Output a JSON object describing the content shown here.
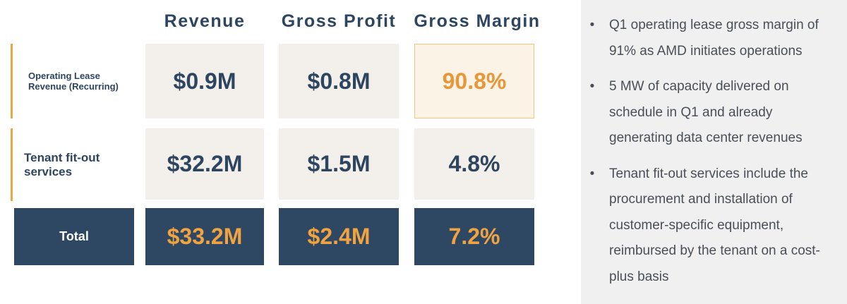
{
  "columns": {
    "revenue": "Revenue",
    "gross_profit": "Gross Profit",
    "gross_margin": "Gross Margin"
  },
  "rows": [
    {
      "label_line1": "Operating Lease",
      "label_line2": "Revenue (Recurring)",
      "revenue": "$0.9M",
      "gross_profit": "$0.8M",
      "gross_margin": "90.8%"
    },
    {
      "label_line1": "Tenant fit-out",
      "label_line2": "services",
      "revenue": "$32.2M",
      "gross_profit": "$1.5M",
      "gross_margin": "4.8%"
    }
  ],
  "total": {
    "label": "Total",
    "revenue": "$33.2M",
    "gross_profit": "$2.4M",
    "gross_margin": "7.2%"
  },
  "bullets": [
    "Q1 operating lease gross margin of 91% as AMD initiates operations",
    "5 MW of capacity delivered on schedule in Q1 and already generating data center revenues",
    "Tenant fit-out services include the procurement and installation of customer-specific equipment, reimbursed by the tenant on a cost-plus basis"
  ],
  "bullet_glyph": "•",
  "colors": {
    "navy": "#2e4763",
    "accent_orange": "#e8963a",
    "cell_bg": "#f3f0eb",
    "panel_bg": "#f0f0f0"
  }
}
